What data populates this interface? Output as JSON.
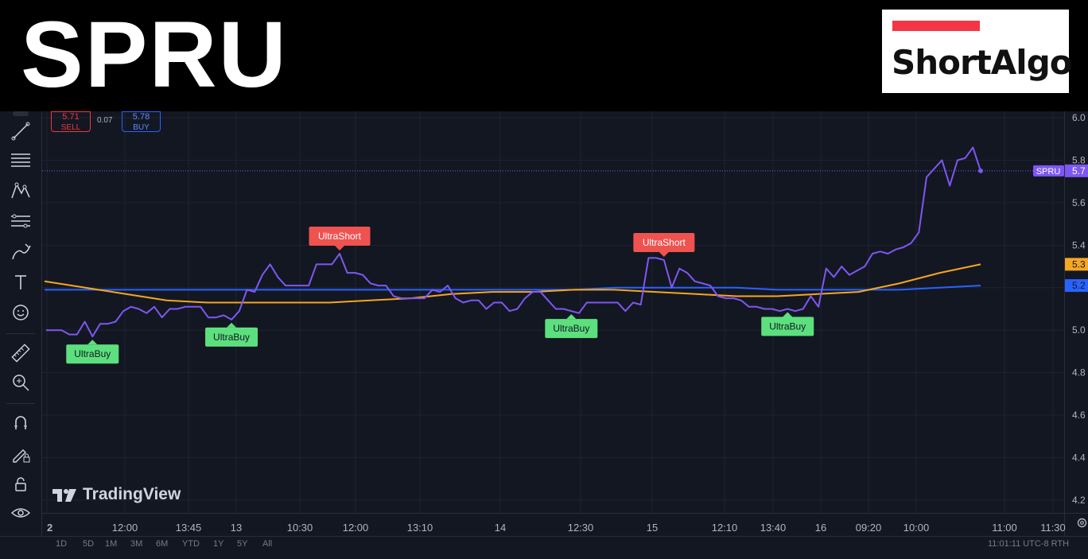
{
  "header": {
    "ticker": "SPRU",
    "logo_text": "ShortAlgo"
  },
  "order_panel": {
    "sell_price": "5.71",
    "sell_label": "SELL",
    "spread": "0.07",
    "buy_price": "5.78",
    "buy_label": "BUY"
  },
  "watermark": "TradingView",
  "toolbar": {
    "tools": [
      "crosshair-icon",
      "trend-line-icon",
      "fib-lines-icon",
      "pattern-icon",
      "forecast-icon",
      "brush-icon",
      "text-icon",
      "emoji-icon",
      "ruler-icon",
      "zoom-in-icon",
      "magnet-icon",
      "lock-drawing-icon",
      "lock-icon",
      "eye-icon",
      "trash-icon"
    ]
  },
  "bottom_bar": {
    "items": [
      "1D",
      "5D",
      "1M",
      "3M",
      "6M",
      "YTD",
      "1Y",
      "5Y",
      "All"
    ],
    "clock": "11:01:11 UTC-8   RTH"
  },
  "colors": {
    "price_line": "#7e57f2",
    "ma_fast": "#f5a623",
    "ma_slow": "#2962ff",
    "buy_label_bg": "#5ce07e",
    "short_label_bg": "#ef5350",
    "background": "#131722"
  },
  "chart_data": {
    "type": "line",
    "ticker_label": "SPRU",
    "price_label": "5.7",
    "ylim": [
      4.14,
      6.03
    ],
    "y_ticks": [
      6.0,
      5.8,
      5.6,
      5.4,
      5.2,
      5.0,
      4.8,
      4.6,
      4.4,
      4.2
    ],
    "y_tick_labels": [
      "6.0",
      "5.8",
      "5.6",
      "5.4",
      "5.2",
      "5.0",
      "4.8",
      "4.6",
      "4.4",
      "4.2"
    ],
    "x_tick_labels": [
      "2",
      "12:00",
      "13:45",
      "13",
      "10:30",
      "12:00",
      "13:10",
      "14",
      "12:30",
      "15",
      "12:10",
      "13:40",
      "16",
      "09:20",
      "10:00",
      "11:00",
      "11:30"
    ],
    "grid": true,
    "series": [
      {
        "name": "SPRU",
        "color": "#7e57f2",
        "values": [
          5.0,
          5.0,
          5.0,
          4.98,
          4.98,
          5.04,
          4.97,
          5.03,
          5.03,
          5.04,
          5.09,
          5.11,
          5.1,
          5.08,
          5.11,
          5.06,
          5.1,
          5.1,
          5.11,
          5.11,
          5.11,
          5.06,
          5.06,
          5.07,
          5.05,
          5.09,
          5.19,
          5.18,
          5.26,
          5.31,
          5.25,
          5.21,
          5.21,
          5.21,
          5.21,
          5.31,
          5.31,
          5.31,
          5.36,
          5.27,
          5.27,
          5.26,
          5.22,
          5.21,
          5.21,
          5.16,
          5.15,
          5.15,
          5.15,
          5.15,
          5.19,
          5.18,
          5.21,
          5.15,
          5.13,
          5.14,
          5.14,
          5.1,
          5.13,
          5.13,
          5.09,
          5.1,
          5.15,
          5.18,
          5.18,
          5.14,
          5.1,
          5.1,
          5.09,
          5.08,
          5.13,
          5.13,
          5.13,
          5.13,
          5.13,
          5.09,
          5.13,
          5.12,
          5.34,
          5.34,
          5.33,
          5.2,
          5.29,
          5.27,
          5.23,
          5.22,
          5.21,
          5.16,
          5.15,
          5.15,
          5.14,
          5.11,
          5.11,
          5.1,
          5.1,
          5.09,
          5.1,
          5.09,
          5.1,
          5.16,
          5.11,
          5.29,
          5.25,
          5.3,
          5.26,
          5.28,
          5.3,
          5.36,
          5.37,
          5.36,
          5.38,
          5.39,
          5.41,
          5.46,
          5.72,
          5.76,
          5.8,
          5.68,
          5.8,
          5.81,
          5.86,
          5.75
        ]
      },
      {
        "name": "",
        "color": "#f5a623",
        "values": [
          5.23,
          5.2,
          5.17,
          5.14,
          5.13,
          5.13,
          5.13,
          5.13,
          5.14,
          5.15,
          5.17,
          5.18,
          5.18,
          5.19,
          5.19,
          5.18,
          5.17,
          5.16,
          5.16,
          5.17,
          5.18,
          5.22,
          5.27,
          5.31
        ]
      },
      {
        "name": "",
        "color": "#2962ff",
        "values": [
          5.19,
          5.19,
          5.19,
          5.19,
          5.19,
          5.19,
          5.19,
          5.19,
          5.19,
          5.19,
          5.19,
          5.19,
          5.19,
          5.19,
          5.2,
          5.2,
          5.2,
          5.2,
          5.19,
          5.19,
          5.19,
          5.19,
          5.2,
          5.21
        ]
      }
    ],
    "signals": [
      {
        "text": "UltraBuy",
        "type": "buy",
        "index": 6
      },
      {
        "text": "UltraBuy",
        "type": "buy",
        "index": 24
      },
      {
        "text": "UltraShort",
        "type": "short",
        "index": 38
      },
      {
        "text": "UltraBuy",
        "type": "buy",
        "index": 68
      },
      {
        "text": "UltraShort",
        "type": "short",
        "index": 80
      },
      {
        "text": "UltraBuy",
        "type": "buy",
        "index": 96
      }
    ],
    "right_labels": [
      {
        "text": "5.3",
        "value": 5.31,
        "color": "#f5a623"
      },
      {
        "text": "5.2",
        "value": 5.21,
        "color": "#2962ff"
      }
    ]
  }
}
